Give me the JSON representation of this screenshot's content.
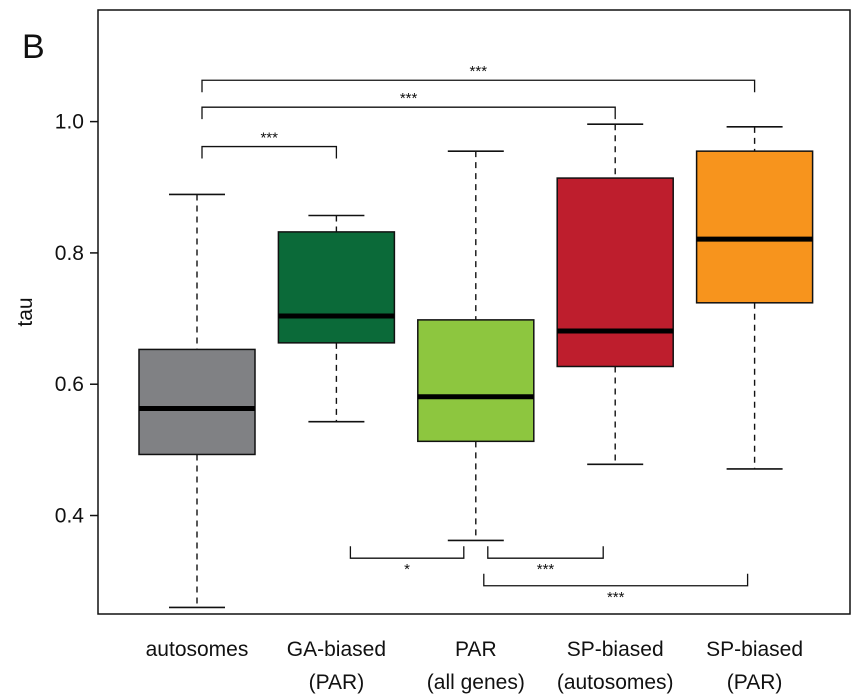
{
  "panel_label": "B",
  "chart_data": {
    "type": "boxplot",
    "ylabel": "tau",
    "ylim": [
      0.25,
      1.17
    ],
    "yticks": [
      0.4,
      0.6,
      0.8,
      1.0
    ],
    "ytick_labels": [
      "0.4",
      "0.6",
      "0.8",
      "1.0"
    ],
    "categories": [
      {
        "line1": "autosomes",
        "line2": ""
      },
      {
        "line1": "GA-biased",
        "line2": "(PAR)"
      },
      {
        "line1": "PAR",
        "line2": "(all genes)"
      },
      {
        "line1": "SP-biased",
        "line2": "(autosomes)"
      },
      {
        "line1": "SP-biased",
        "line2": "(PAR)"
      }
    ],
    "boxes": [
      {
        "whisker_low": 0.26,
        "q1": 0.493,
        "median": 0.563,
        "q3": 0.653,
        "whisker_high": 0.889,
        "color": "#808184"
      },
      {
        "whisker_low": 0.543,
        "q1": 0.663,
        "median": 0.704,
        "q3": 0.832,
        "whisker_high": 0.857,
        "color": "#0b6a39"
      },
      {
        "whisker_low": 0.362,
        "q1": 0.513,
        "median": 0.581,
        "q3": 0.698,
        "whisker_high": 0.955,
        "color": "#8dc63f"
      },
      {
        "whisker_low": 0.478,
        "q1": 0.627,
        "median": 0.681,
        "q3": 0.914,
        "whisker_high": 0.996,
        "color": "#be1e2d"
      },
      {
        "whisker_low": 0.471,
        "q1": 0.724,
        "median": 0.821,
        "q3": 0.955,
        "whisker_high": 0.992,
        "color": "#f7941d"
      }
    ],
    "significance": [
      {
        "from": 0,
        "to": 1,
        "label": "***",
        "y": 0.962,
        "side": "top"
      },
      {
        "from": 0,
        "to": 3,
        "label": "***",
        "y": 1.022,
        "side": "top"
      },
      {
        "from": 0,
        "to": 4,
        "label": "***",
        "y": 1.063,
        "side": "top"
      },
      {
        "from": 1,
        "to": 2,
        "label": "*",
        "y": 0.335,
        "side": "bottom"
      },
      {
        "from": 2,
        "to": 3,
        "label": "***",
        "y": 0.335,
        "side": "bottom"
      },
      {
        "from": 2,
        "to": 4,
        "label": "***",
        "y": 0.293,
        "side": "bottom"
      }
    ]
  }
}
